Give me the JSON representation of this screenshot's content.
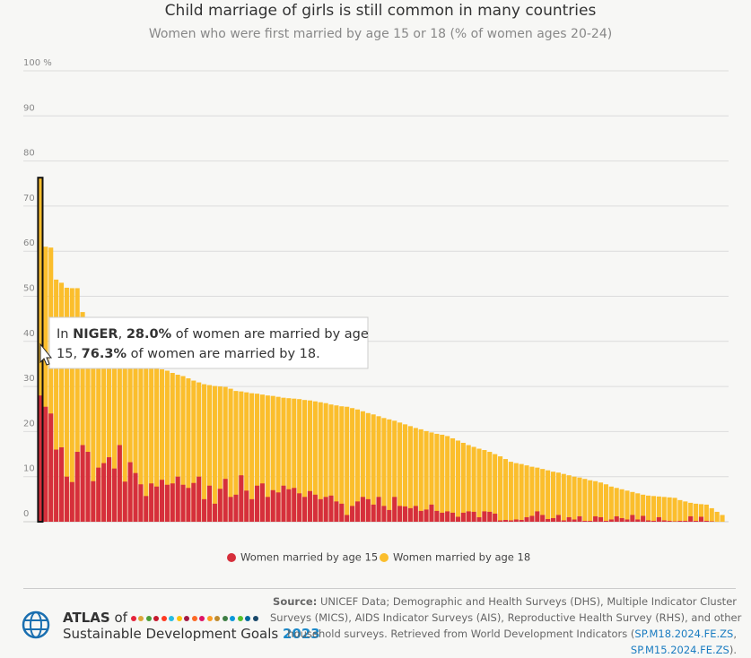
{
  "chart_data": {
    "type": "bar",
    "title": "Child marriage of girls is still common in many countries",
    "subtitle": "Women who were first married by age 15 or 18 (% of women ages 20-24)",
    "categories": [
      null,
      null,
      null,
      null,
      null,
      null,
      null,
      null,
      null,
      null,
      null,
      null,
      null,
      null,
      null,
      null,
      null,
      null,
      null,
      null,
      null,
      null,
      null,
      null,
      null,
      null,
      null,
      null,
      null,
      null,
      null,
      null,
      null,
      null,
      null,
      null,
      null,
      null,
      null,
      null,
      null,
      null,
      null,
      null,
      null,
      null,
      null,
      null,
      null,
      null,
      null,
      null,
      null,
      null,
      null,
      null,
      null,
      null,
      null,
      null,
      null,
      null,
      null,
      null,
      null,
      null,
      null,
      null,
      null,
      null,
      null,
      null,
      null,
      null,
      null,
      null,
      null,
      null,
      null,
      null,
      null,
      null,
      null,
      null,
      null,
      null,
      null,
      null,
      null,
      null,
      null,
      null,
      null,
      null,
      null,
      null,
      null,
      null,
      null,
      null,
      null,
      null,
      null,
      null,
      null,
      null,
      null,
      null,
      null,
      null,
      null,
      null,
      null,
      null,
      null,
      null,
      null,
      null,
      null,
      null,
      null,
      null,
      null,
      null,
      null,
      null,
      null,
      null,
      null,
      null
    ],
    "series": [
      {
        "name": "Women married by age 18",
        "color": "#fbbe2c",
        "values": [
          76.3,
          61.0,
          60.8,
          53.7,
          53.0,
          51.9,
          51.8,
          51.8,
          46.5,
          44.0,
          42.0,
          40.8,
          39.5,
          38.0,
          37.0,
          36.5,
          35.8,
          35.2,
          34.9,
          34.6,
          34.4,
          34.2,
          34.0,
          33.8,
          33.5,
          33.0,
          32.6,
          32.3,
          31.8,
          31.3,
          30.9,
          30.5,
          30.3,
          30.1,
          30.0,
          29.9,
          29.5,
          29.0,
          28.9,
          28.7,
          28.5,
          28.4,
          28.2,
          28.0,
          27.9,
          27.7,
          27.5,
          27.4,
          27.3,
          27.2,
          27.0,
          26.9,
          26.7,
          26.5,
          26.3,
          26.0,
          25.8,
          25.6,
          25.5,
          25.2,
          24.9,
          24.5,
          24.1,
          23.8,
          23.4,
          23.0,
          22.7,
          22.4,
          22.0,
          21.6,
          21.2,
          20.8,
          20.5,
          20.1,
          19.8,
          19.5,
          19.3,
          19.0,
          18.5,
          18.0,
          17.5,
          17.0,
          16.6,
          16.2,
          15.9,
          15.5,
          15.0,
          14.5,
          13.9,
          13.3,
          13.0,
          12.8,
          12.5,
          12.2,
          12.0,
          11.7,
          11.4,
          11.1,
          10.9,
          10.6,
          10.3,
          10.0,
          9.8,
          9.5,
          9.2,
          9.0,
          8.7,
          8.3,
          7.8,
          7.5,
          7.2,
          6.9,
          6.6,
          6.3,
          6.0,
          5.8,
          5.7,
          5.6,
          5.5,
          5.4,
          5.3,
          4.8,
          4.5,
          4.2,
          4.0,
          3.9,
          3.8,
          3.0,
          2.2,
          1.5
        ]
      },
      {
        "name": "Women married by age 15",
        "color": "#d62f3b",
        "values": [
          28.0,
          25.5,
          24.0,
          16.0,
          16.5,
          10.0,
          8.8,
          15.5,
          17.0,
          15.5,
          9.0,
          12.0,
          13.0,
          14.3,
          11.8,
          17.0,
          8.9,
          13.2,
          10.8,
          8.3,
          5.7,
          8.5,
          7.8,
          9.3,
          8.2,
          8.5,
          10.0,
          8.2,
          7.5,
          8.6,
          10.0,
          5.0,
          8.0,
          4.0,
          7.3,
          9.5,
          5.5,
          6.0,
          10.3,
          6.9,
          5.0,
          8.0,
          8.5,
          5.5,
          7.0,
          6.5,
          8.0,
          7.2,
          7.5,
          6.3,
          5.5,
          6.8,
          6.0,
          5.0,
          5.5,
          5.8,
          4.5,
          4.0,
          1.5,
          3.5,
          4.5,
          5.5,
          5.0,
          3.8,
          5.5,
          3.5,
          2.6,
          5.5,
          3.5,
          3.4,
          3.0,
          3.5,
          2.4,
          2.7,
          3.8,
          2.4,
          2.0,
          2.3,
          2.0,
          1.1,
          2.0,
          2.3,
          2.2,
          1.0,
          2.3,
          2.2,
          1.8,
          0.3,
          0.4,
          0.3,
          0.5,
          0.4,
          1.0,
          1.3,
          2.3,
          1.5,
          0.6,
          0.8,
          1.5,
          0.3,
          1.0,
          0.5,
          1.2,
          0.2,
          0.2,
          1.2,
          1.0,
          0.2,
          0.5,
          1.2,
          0.8,
          0.5,
          1.5,
          0.5,
          1.3,
          0.3,
          0.2,
          1.0,
          0.3,
          0.2,
          0.1,
          0.2,
          0.2,
          1.2,
          0.2,
          1.1,
          0.2,
          0.1,
          0.0,
          0.0
        ]
      }
    ],
    "ylim": [
      0,
      100
    ],
    "yticks": [
      0,
      10,
      20,
      30,
      40,
      50,
      60,
      70,
      80,
      90,
      {
        "value": 100,
        "label": "100 %"
      }
    ],
    "grid": true,
    "legend": "bottom",
    "highlight_index": 0,
    "tooltip": {
      "lines": [
        [
          "In ",
          "NIGER",
          ", ",
          "28.0%",
          " of women are married by age"
        ],
        [
          "15, ",
          "76.3%",
          " of women are married by 18."
        ]
      ]
    }
  },
  "footer": {
    "brand": {
      "atlas": "ATLAS",
      "of": "of",
      "line2": "Sustainable Development Goals",
      "year": "2023"
    },
    "source": {
      "lines": [
        [
          "Source:",
          " UNICEF Data; Demographic and Health Surveys (DHS), Multiple Indicator Cluster"
        ],
        [
          "Surveys (MICS), AIDS Indicator Surveys (AIS), Reproductive Health Survey (RHS), and other"
        ],
        [
          "household surveys. Retrieved from World Development Indicators (",
          "SP.M18.2024.FE.ZS",
          ","
        ],
        [
          "SP.M15.2024.FE.ZS",
          ")."
        ]
      ]
    }
  }
}
